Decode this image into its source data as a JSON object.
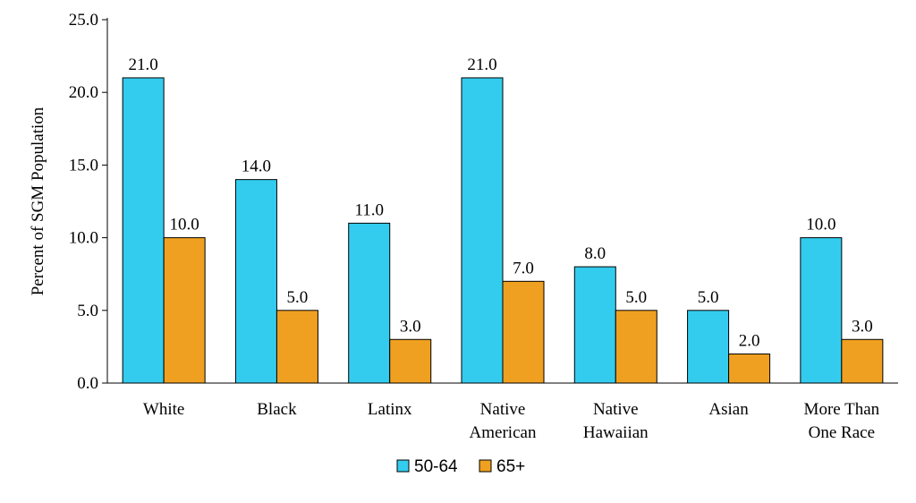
{
  "chart_data": {
    "type": "bar",
    "title": "",
    "xlabel": "",
    "ylabel": "Percent of SGM Population",
    "ylim": [
      0,
      25
    ],
    "yticks": [
      "0.0",
      "5.0",
      "10.0",
      "15.0",
      "20.0",
      "25.0"
    ],
    "grid": false,
    "legend_position": "bottom",
    "categories": [
      [
        "White"
      ],
      [
        "Black"
      ],
      [
        "Latinx"
      ],
      [
        "Native",
        "American"
      ],
      [
        "Native",
        "Hawaiian"
      ],
      [
        "Asian"
      ],
      [
        "More Than",
        "One Race"
      ]
    ],
    "series": [
      {
        "name": "50-64",
        "color": "#33CCEE",
        "values": [
          21.0,
          14.0,
          11.0,
          21.0,
          8.0,
          5.0,
          10.0
        ]
      },
      {
        "name": "65+",
        "color": "#F0A020",
        "values": [
          10.0,
          5.0,
          3.0,
          7.0,
          5.0,
          2.0,
          3.0
        ]
      }
    ]
  }
}
